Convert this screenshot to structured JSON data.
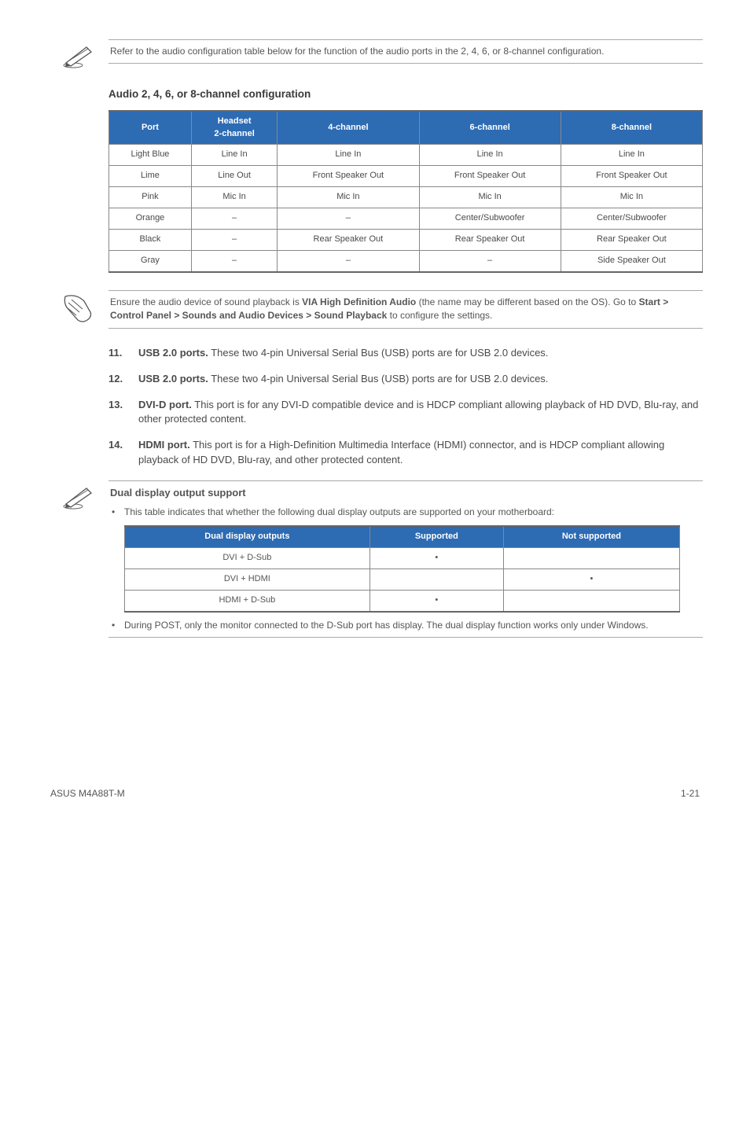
{
  "note1": {
    "text": "Refer to the audio configuration table below for the function of the audio ports in the 2, 4, 6, or 8-channel configuration."
  },
  "audio_section": {
    "title": "Audio 2, 4, 6, or 8-channel configuration",
    "header_bg": "#2d6bb3",
    "columns": [
      "Port",
      "Headset 2-channel",
      "4-channel",
      "6-channel",
      "8-channel"
    ],
    "rows": [
      [
        "Light Blue",
        "Line In",
        "Line In",
        "Line In",
        "Line In"
      ],
      [
        "Lime",
        "Line Out",
        "Front Speaker Out",
        "Front Speaker Out",
        "Front Speaker Out"
      ],
      [
        "Pink",
        "Mic In",
        "Mic In",
        "Mic In",
        "Mic In"
      ],
      [
        "Orange",
        "–",
        "–",
        "Center/Subwoofer",
        "Center/Subwoofer"
      ],
      [
        "Black",
        "–",
        "Rear Speaker Out",
        "Rear Speaker Out",
        "Rear Speaker Out"
      ],
      [
        "Gray",
        "–",
        "–",
        "–",
        "Side Speaker Out"
      ]
    ]
  },
  "note2": {
    "pre": "Ensure the audio device of sound playback is ",
    "b1": "VIA High Definition Audio",
    "mid": " (the name may be different based on the OS). Go to ",
    "b2": "Start > Control Panel > Sounds and Audio Devices > Sound Playback",
    "post": " to configure the settings."
  },
  "items": {
    "i11": {
      "num": "11.",
      "bold": "USB 2.0 ports.",
      "text": " These two 4-pin Universal Serial Bus (USB) ports are for USB 2.0 devices."
    },
    "i12": {
      "num": "12.",
      "bold": "USB 2.0 ports.",
      "text": " These two 4-pin Universal Serial Bus (USB) ports are for USB 2.0 devices."
    },
    "i13": {
      "num": "13.",
      "bold": "DVI-D port.",
      "text": " This port is for any DVI-D compatible device and is HDCP compliant allowing playback of HD DVD, Blu-ray, and other protected content."
    },
    "i14": {
      "num": "14.",
      "bold": "HDMI port.",
      "text": " This port is for a High-Definition Multimedia Interface (HDMI) connector, and is HDCP compliant allowing playback of HD DVD, Blu-ray, and other protected content."
    }
  },
  "note3": {
    "title": "Dual display output support",
    "bullet1": "This table indicates that whether the following dual display outputs are supported on your motherboard:",
    "dual_table": {
      "header_bg": "#2d6bb3",
      "columns": [
        "Dual display outputs",
        "Supported",
        "Not supported"
      ],
      "rows": [
        [
          "DVI + D-Sub",
          "•",
          ""
        ],
        [
          "DVI + HDMI",
          "",
          "•"
        ],
        [
          "HDMI + D-Sub",
          "•",
          ""
        ]
      ]
    },
    "bullet2": "During POST, only the monitor connected to the D-Sub port has display. The dual display function works only under Windows."
  },
  "footer": {
    "left": "ASUS M4A88T-M",
    "right": "1-21"
  }
}
